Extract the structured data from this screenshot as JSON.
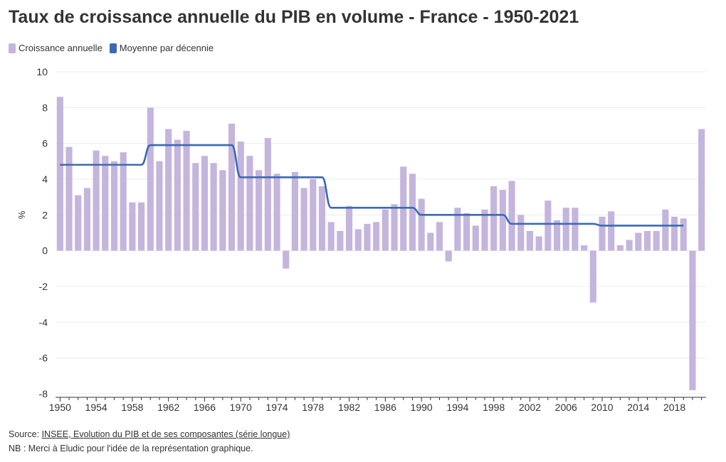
{
  "colors": {
    "bar": "#c4b5dd",
    "line": "#3b6ab3",
    "grid": "#ececec",
    "axis": "#333333"
  },
  "footer": {
    "source_prefix": "Source: ",
    "source_link": "INSEE, Evolution du PIB et de ses composantes (série longue)",
    "note": "NB : Merci à Eludic pour l'idée de la représentation graphique."
  },
  "chart_data": {
    "type": "bar",
    "title": "Taux de croissance annuelle du PIB en volume - France - 1950-2021",
    "ylabel": "%",
    "xlabel": "",
    "ylim": [
      -8,
      10
    ],
    "yticks": [
      10,
      8,
      6,
      4,
      2,
      0,
      -2,
      -4,
      -6,
      -8
    ],
    "xticks": [
      1950,
      1954,
      1958,
      1962,
      1966,
      1970,
      1974,
      1978,
      1982,
      1986,
      1990,
      1994,
      1998,
      2002,
      2006,
      2010,
      2014,
      2018
    ],
    "grid": true,
    "legend_position": "top-left",
    "categories": [
      1950,
      1951,
      1952,
      1953,
      1954,
      1955,
      1956,
      1957,
      1958,
      1959,
      1960,
      1961,
      1962,
      1963,
      1964,
      1965,
      1966,
      1967,
      1968,
      1969,
      1970,
      1971,
      1972,
      1973,
      1974,
      1975,
      1976,
      1977,
      1978,
      1979,
      1980,
      1981,
      1982,
      1983,
      1984,
      1985,
      1986,
      1987,
      1988,
      1989,
      1990,
      1991,
      1992,
      1993,
      1994,
      1995,
      1996,
      1997,
      1998,
      1999,
      2000,
      2001,
      2002,
      2003,
      2004,
      2005,
      2006,
      2007,
      2008,
      2009,
      2010,
      2011,
      2012,
      2013,
      2014,
      2015,
      2016,
      2017,
      2018,
      2019,
      2020,
      2021
    ],
    "series": [
      {
        "name": "Croissance annuelle",
        "kind": "bar",
        "values": [
          8.6,
          5.8,
          3.1,
          3.5,
          5.6,
          5.3,
          5.0,
          5.5,
          2.7,
          2.7,
          8.0,
          5.0,
          6.8,
          6.2,
          6.7,
          4.9,
          5.3,
          4.9,
          4.5,
          7.1,
          6.1,
          5.3,
          4.5,
          6.3,
          4.3,
          -1.0,
          4.4,
          3.5,
          4.0,
          3.6,
          1.6,
          1.1,
          2.5,
          1.2,
          1.5,
          1.6,
          2.3,
          2.6,
          4.7,
          4.3,
          2.9,
          1.0,
          1.6,
          -0.6,
          2.4,
          2.1,
          1.4,
          2.3,
          3.6,
          3.4,
          3.9,
          2.0,
          1.1,
          0.8,
          2.8,
          1.7,
          2.4,
          2.4,
          0.3,
          -2.9,
          1.9,
          2.2,
          0.3,
          0.6,
          1.0,
          1.1,
          1.1,
          2.3,
          1.9,
          1.8,
          -7.8,
          6.8
        ]
      },
      {
        "name": "Moyenne par décennie",
        "kind": "line",
        "decades": [
          {
            "start": 1950,
            "end": 1959,
            "value": 4.8
          },
          {
            "start": 1960,
            "end": 1969,
            "value": 5.9
          },
          {
            "start": 1970,
            "end": 1979,
            "value": 4.1
          },
          {
            "start": 1980,
            "end": 1989,
            "value": 2.4
          },
          {
            "start": 1990,
            "end": 1999,
            "value": 2.0
          },
          {
            "start": 2000,
            "end": 2009,
            "value": 1.5
          },
          {
            "start": 2010,
            "end": 2019,
            "value": 1.4
          }
        ]
      }
    ]
  }
}
